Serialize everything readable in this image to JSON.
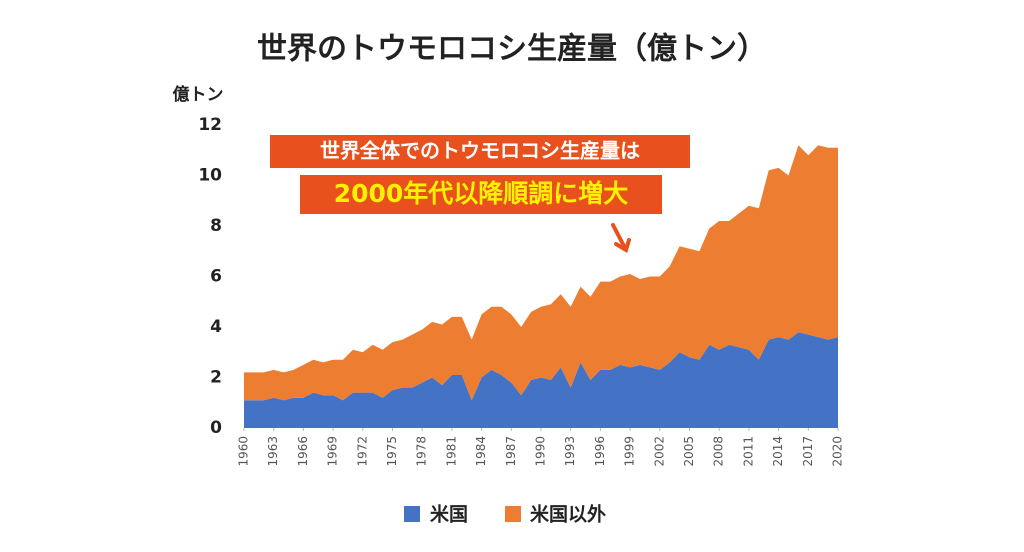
{
  "chart_data": {
    "type": "stacked-area",
    "title": "世界のトウモロコシ生産量（億トン）",
    "y_label": "億トン",
    "annotations": [
      "世界全体でのトウモロコシ生産量は",
      "2000年代以降順調に増大"
    ],
    "x": [
      1960,
      1961,
      1962,
      1963,
      1964,
      1965,
      1966,
      1967,
      1968,
      1969,
      1970,
      1971,
      1972,
      1973,
      1974,
      1975,
      1976,
      1977,
      1978,
      1979,
      1980,
      1981,
      1982,
      1983,
      1984,
      1985,
      1986,
      1987,
      1988,
      1989,
      1990,
      1991,
      1992,
      1993,
      1994,
      1995,
      1996,
      1997,
      1998,
      1999,
      2000,
      2001,
      2002,
      2003,
      2004,
      2005,
      2006,
      2007,
      2008,
      2009,
      2010,
      2011,
      2012,
      2013,
      2014,
      2015,
      2016,
      2017,
      2018,
      2019,
      2020
    ],
    "xlim": [
      1960,
      2020
    ],
    "xticks": [
      1960,
      1963,
      1966,
      1969,
      1972,
      1975,
      1978,
      1981,
      1984,
      1987,
      1990,
      1993,
      1996,
      1999,
      2002,
      2005,
      2008,
      2011,
      2014,
      2017,
      2020
    ],
    "ylim": [
      0,
      12
    ],
    "yticks": [
      0,
      2,
      4,
      6,
      8,
      10,
      12
    ],
    "grid": false,
    "series": [
      {
        "name": "米国",
        "color": "#4472c4",
        "values": [
          1.1,
          1.1,
          1.1,
          1.2,
          1.1,
          1.2,
          1.2,
          1.4,
          1.3,
          1.3,
          1.1,
          1.4,
          1.4,
          1.4,
          1.2,
          1.5,
          1.6,
          1.6,
          1.8,
          2.0,
          1.7,
          2.1,
          2.1,
          1.1,
          2.0,
          2.3,
          2.1,
          1.8,
          1.3,
          1.9,
          2.0,
          1.9,
          2.4,
          1.6,
          2.6,
          1.9,
          2.3,
          2.3,
          2.5,
          2.4,
          2.5,
          2.4,
          2.3,
          2.6,
          3.0,
          2.8,
          2.7,
          3.3,
          3.1,
          3.3,
          3.2,
          3.1,
          2.7,
          3.5,
          3.6,
          3.5,
          3.8,
          3.7,
          3.6,
          3.5,
          3.6
        ]
      },
      {
        "name": "米国以外",
        "color": "#ed7d31",
        "values": [
          1.1,
          1.1,
          1.1,
          1.1,
          1.1,
          1.1,
          1.3,
          1.3,
          1.3,
          1.4,
          1.6,
          1.7,
          1.6,
          1.9,
          1.9,
          1.9,
          1.9,
          2.1,
          2.1,
          2.2,
          2.4,
          2.3,
          2.3,
          2.4,
          2.5,
          2.5,
          2.7,
          2.7,
          2.7,
          2.7,
          2.8,
          3.0,
          2.9,
          3.2,
          3.0,
          3.3,
          3.5,
          3.5,
          3.5,
          3.7,
          3.4,
          3.6,
          3.7,
          3.8,
          4.2,
          4.3,
          4.3,
          4.6,
          5.1,
          4.9,
          5.3,
          5.7,
          6.0,
          6.7,
          6.7,
          6.5,
          7.4,
          7.1,
          7.6,
          7.6,
          7.5
        ]
      }
    ]
  }
}
